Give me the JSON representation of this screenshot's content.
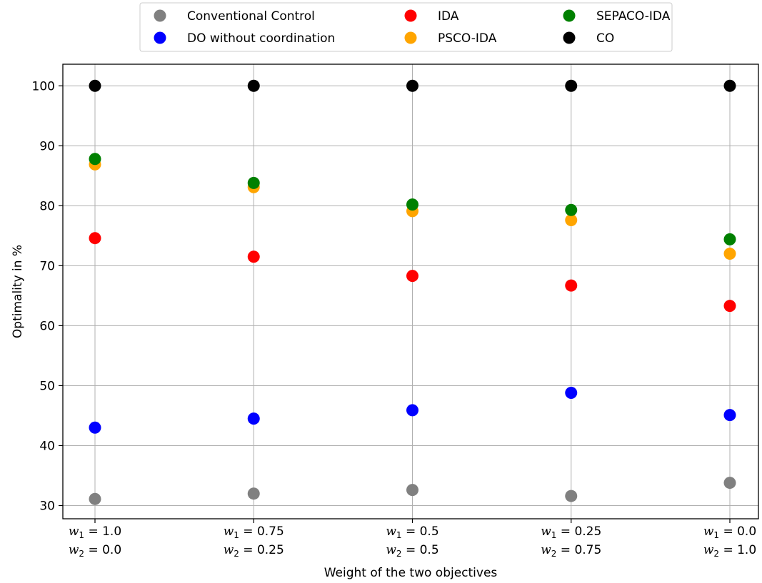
{
  "chart_data": {
    "type": "scatter",
    "title": "",
    "xlabel": "Weight of the two objectives",
    "ylabel": "Optimality in %",
    "ylim": [
      27.8,
      103.6
    ],
    "yticks": [
      30,
      40,
      50,
      60,
      70,
      80,
      90,
      100
    ],
    "grid": true,
    "legend_placement": "top-center (outside plot)",
    "categories": [
      {
        "w1": "1.0",
        "w2": "0.0"
      },
      {
        "w1": "0.75",
        "w2": "0.25"
      },
      {
        "w1": "0.5",
        "w2": "0.5"
      },
      {
        "w1": "0.25",
        "w2": "0.75"
      },
      {
        "w1": "0.0",
        "w2": "1.0"
      }
    ],
    "series": [
      {
        "name": "Conventional Control",
        "color": "#808080",
        "values": [
          31.1,
          32.0,
          32.6,
          31.6,
          33.8
        ]
      },
      {
        "name": "DO without coordination",
        "color": "#0000ff",
        "values": [
          43.0,
          44.5,
          45.9,
          48.8,
          45.1
        ]
      },
      {
        "name": "IDA",
        "color": "#ff0000",
        "values": [
          74.6,
          71.5,
          68.3,
          66.7,
          63.3
        ]
      },
      {
        "name": "PSCO-IDA",
        "color": "#ffa500",
        "values": [
          86.9,
          83.1,
          79.1,
          77.6,
          72.0
        ]
      },
      {
        "name": "SEPACO-IDA",
        "color": "#008000",
        "values": [
          87.8,
          83.8,
          80.2,
          79.3,
          74.4
        ]
      },
      {
        "name": "CO",
        "color": "#000000",
        "values": [
          100,
          100,
          100,
          100,
          100
        ]
      }
    ]
  }
}
